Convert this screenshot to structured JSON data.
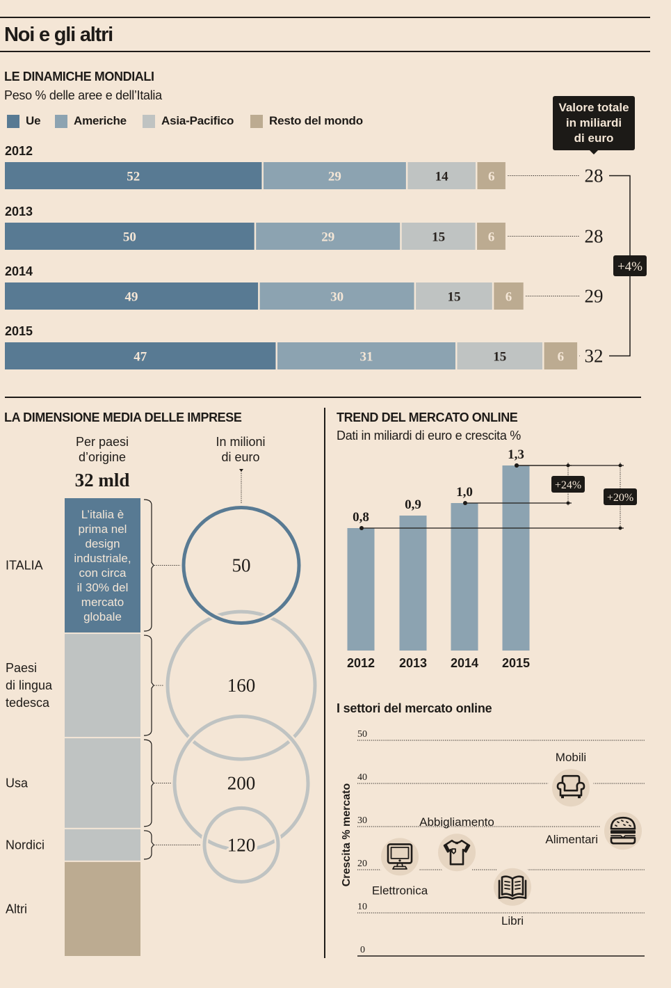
{
  "header": {
    "title": "Noi e gli altri"
  },
  "colors": {
    "background": "#f4e6d6",
    "ue": "#587a93",
    "americhe": "#8ca3b1",
    "asia_pacifico": "#bfc3c2",
    "resto_del_mondo": "#bcab91",
    "badge": "#1c1a17",
    "icon_bubble": "#e6d5c1"
  },
  "chart_data": [
    {
      "id": "dinamiche-mondiali",
      "type": "bar",
      "orientation": "horizontal",
      "stacked": true,
      "title": "LE DINAMICHE MONDIALI",
      "subtitle": "Peso % delle aree e dell’Italia",
      "legend_position": "top-left",
      "categories": [
        "2012",
        "2013",
        "2014",
        "2015"
      ],
      "series": [
        {
          "name": "Ue",
          "color": "#587a93",
          "label_color": "#f4e6d6",
          "values": [
            52,
            50,
            49,
            47
          ]
        },
        {
          "name": "Americhe",
          "color": "#8ca3b1",
          "label_color": "#f4e6d6",
          "values": [
            29,
            29,
            30,
            31
          ]
        },
        {
          "name": "Asia-Pacifico",
          "color": "#bfc3c2",
          "label_color": "#2a2420",
          "values": [
            14,
            15,
            15,
            15
          ]
        },
        {
          "name": "Resto del mondo",
          "color": "#bcab91",
          "label_color": "#f4e6d6",
          "values": [
            6,
            6,
            6,
            6
          ]
        }
      ],
      "totals": {
        "label_lines": [
          "Valore totale",
          "in miliardi",
          "di euro"
        ],
        "unit": "miliardi di euro",
        "values": [
          28,
          28,
          29,
          32
        ]
      },
      "growth": {
        "label": "+4%",
        "from": "2012",
        "to": "2015"
      }
    },
    {
      "id": "dimensione-media-imprese",
      "type": "bar",
      "orientation": "vertical",
      "stacked": true,
      "title": "LA DIMENSIONE MEDIA DELLE IMPRESE",
      "column_header_lines": [
        "Per paesi",
        "d’origine"
      ],
      "column_total": "32 mld",
      "bubbles_header_lines": [
        "In milioni",
        "di euro"
      ],
      "categories": [
        {
          "name": "ITALIA",
          "label_lines": [
            "ITALIA"
          ],
          "share_pct": 30,
          "color": "#587a93",
          "avg_size": 50,
          "bubble_color": "#587a93",
          "note_lines": [
            "L’italia è",
            "prima nel",
            "design",
            "industriale,",
            "con circa",
            "il 30% del",
            "mercato",
            "globale"
          ]
        },
        {
          "name": "Paesi di lingua tedesca",
          "label_lines": [
            "Paesi",
            "di lingua",
            "tedesca"
          ],
          "share_pct": 23,
          "color": "#bfc3c2",
          "avg_size": 160,
          "bubble_color": "#bfc3c2"
        },
        {
          "name": "Usa",
          "label_lines": [
            "Usa"
          ],
          "share_pct": 20,
          "color": "#bfc3c2",
          "avg_size": 200,
          "bubble_color": "#bfc3c2"
        },
        {
          "name": "Nordici",
          "label_lines": [
            "Nordici"
          ],
          "share_pct": 7,
          "color": "#bfc3c2",
          "avg_size": 120,
          "bubble_color": "#bfc3c2"
        },
        {
          "name": "Altri",
          "label_lines": [
            "Altri"
          ],
          "share_pct": 21,
          "color": "#bcab91",
          "avg_size": null
        }
      ]
    },
    {
      "id": "trend-mercato-online",
      "type": "bar",
      "title": "TREND DEL MERCATO ONLINE",
      "subtitle": "Dati in miliardi di euro e crescita %",
      "categories": [
        "2012",
        "2013",
        "2014",
        "2015"
      ],
      "values": [
        0.8,
        0.9,
        1.0,
        1.3
      ],
      "value_labels": [
        "0,8",
        "0,9",
        "1,0",
        "1,3"
      ],
      "color": "#8ca3b1",
      "annotations": [
        {
          "label": "+24%",
          "from": "2014",
          "to": "2015"
        },
        {
          "label": "+20%",
          "from": "2012",
          "to": "2015"
        }
      ]
    },
    {
      "id": "settori-mercato-online",
      "type": "scatter",
      "title": "I settori del mercato online",
      "xlabel": "",
      "ylabel": "Crescita % mercato",
      "ylim": [
        0,
        50
      ],
      "yticks": [
        0,
        10,
        20,
        30,
        40,
        50
      ],
      "grid": true,
      "points": [
        {
          "name": "Elettronica",
          "y": 23,
          "icon": "monitor-icon",
          "label_position": "below"
        },
        {
          "name": "Abbigliamento",
          "y": 24,
          "icon": "tshirt-icon",
          "label_position": "above"
        },
        {
          "name": "Libri",
          "y": 16,
          "icon": "book-icon",
          "label_position": "below"
        },
        {
          "name": "Mobili",
          "y": 39,
          "icon": "armchair-icon",
          "label_position": "above"
        },
        {
          "name": "Alimentari",
          "y": 29,
          "icon": "burger-icon",
          "label_position": "left"
        }
      ]
    }
  ]
}
